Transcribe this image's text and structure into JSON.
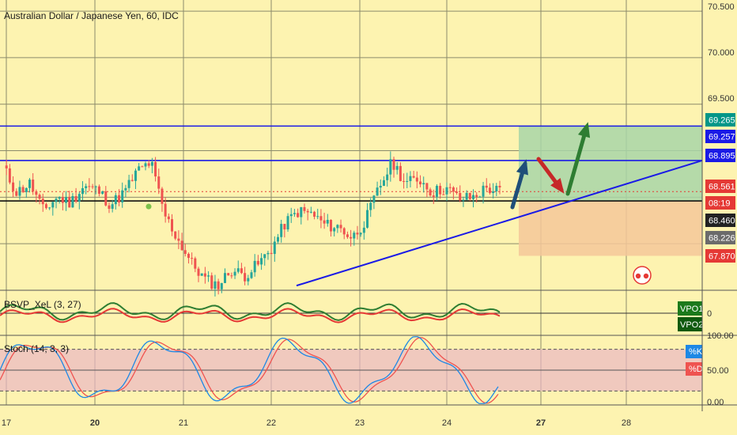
{
  "header": {
    "title": "Australian Dollar / Japanese Yen, 60, IDC"
  },
  "indicators": {
    "bsvp": {
      "label": "BSVP_XeL (3, 27)",
      "zero_label": "0",
      "vpo1": "VPO1",
      "vpo2": "VPO2"
    },
    "stoch": {
      "label": "Stoch (14, 3, 3)",
      "k_label": "%K",
      "d_label": "%D",
      "ticks": [
        "100.00",
        "50.00",
        "0.00"
      ]
    }
  },
  "price_axis": {
    "ticks": [
      "70.500",
      "70.000",
      "69.500"
    ],
    "tags": [
      {
        "text": "69.265",
        "bg": "#009688"
      },
      {
        "text": "69.257",
        "bg": "#1a1ae6"
      },
      {
        "text": "68.895",
        "bg": "#1a1ae6"
      },
      {
        "text": "68.561",
        "bg": "#e53935"
      },
      {
        "text": "08:19",
        "bg": "#e53935"
      },
      {
        "text": "68.460",
        "bg": "#222222"
      },
      {
        "text": "68.226",
        "bg": "#6b6b6b"
      },
      {
        "text": "67.870",
        "bg": "#e53935"
      }
    ]
  },
  "time_axis": {
    "labels": [
      "17",
      "20",
      "21",
      "22",
      "23",
      "24",
      "27",
      "28"
    ]
  },
  "colors": {
    "background": "#fdf3b0",
    "up": "#26a69a",
    "down": "#ef5350",
    "line_blue": "#1a1ae6",
    "target": "#a8d5a8",
    "stop": "#f5c79a"
  },
  "chart_data": {
    "type": "candlestick",
    "title": "Australian Dollar / Japanese Yen, 60, IDC",
    "xlabel": "",
    "ylabel": "",
    "ylim": [
      67.5,
      70.62
    ],
    "x_tick_labels": [
      "17",
      "20",
      "21",
      "22",
      "23",
      "24",
      "27",
      "28"
    ],
    "close_path": [
      68.82,
      68.55,
      68.65,
      68.35,
      68.5,
      68.44,
      68.62,
      68.58,
      68.42,
      68.55,
      68.78,
      68.88,
      68.32,
      68.05,
      67.8,
      67.62,
      67.55,
      67.72,
      67.66,
      67.78,
      67.95,
      68.22,
      68.35,
      68.32,
      68.2,
      68.18,
      68.06,
      68.25,
      68.6,
      68.88,
      68.65,
      68.7,
      68.55,
      68.6,
      68.48,
      68.5,
      68.6,
      68.56
    ],
    "horizontal_levels": [
      69.265,
      68.895,
      68.46
    ],
    "trend_line": {
      "from": [
        67.55,
        "22"
      ],
      "to": [
        68.895,
        "28"
      ]
    },
    "target_zone": [
      68.46,
      69.265
    ],
    "stop_zone": [
      67.87,
      68.46
    ],
    "last_price": 68.561,
    "stochastic": {
      "levels": [
        80,
        20
      ],
      "range": [
        0,
        100
      ]
    }
  }
}
